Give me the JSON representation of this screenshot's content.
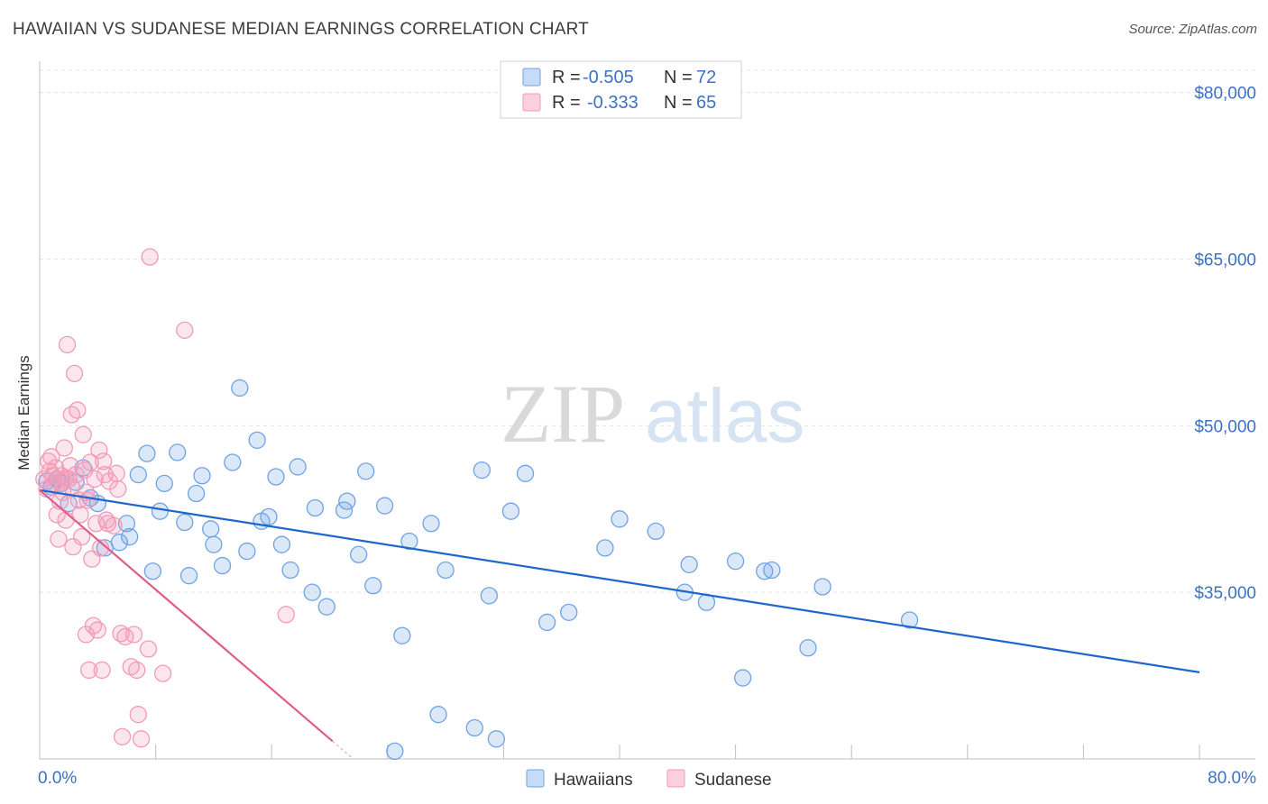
{
  "chart_data": {
    "type": "scatter",
    "title": "HAWAIIAN VS SUDANESE MEDIAN EARNINGS CORRELATION CHART",
    "source": "Source: ZipAtlas.com",
    "ylabel": "Median Earnings",
    "xlabel": "",
    "xlim": [
      0,
      80
    ],
    "ylim": [
      20000,
      82000
    ],
    "x_tick_labels": [
      "0.0%",
      "80.0%"
    ],
    "y_ticks": [
      {
        "value": 35000,
        "label": "$35,000"
      },
      {
        "value": 50000,
        "label": "$50,000"
      },
      {
        "value": 65000,
        "label": "$65,000"
      },
      {
        "value": 80000,
        "label": "$80,000"
      }
    ],
    "grid": true,
    "watermark": "ZIPatlas",
    "colors": {
      "hawaiians": "#6fa3e3",
      "hawaiians_line": "#1f66cc",
      "sudanese": "#f29ab7",
      "sudanese_line": "#e05c8a",
      "axis_text": "#3b72c4"
    },
    "legend": [
      {
        "swatch": "hawaiians",
        "r_label": "R = ",
        "r_value": "-0.505",
        "n_label": "N = ",
        "n_value": "72"
      },
      {
        "swatch": "sudanese",
        "r_label": "R = ",
        "r_value": "-0.333",
        "n_label": "N = ",
        "n_value": "65"
      }
    ],
    "series": [
      {
        "name": "Hawaiians",
        "trend": {
          "x": [
            0,
            80
          ],
          "y": [
            44200,
            27800
          ]
        },
        "points": [
          [
            0.5,
            45000
          ],
          [
            0.8,
            44500
          ],
          [
            1.2,
            45200
          ],
          [
            1.5,
            44800
          ],
          [
            2,
            43000
          ],
          [
            2.5,
            44900
          ],
          [
            3,
            46200
          ],
          [
            3.5,
            43500
          ],
          [
            4,
            43000
          ],
          [
            4.5,
            39000
          ],
          [
            5.5,
            39500
          ],
          [
            6,
            41200
          ],
          [
            6.2,
            40000
          ],
          [
            6.8,
            45600
          ],
          [
            7.4,
            47500
          ],
          [
            7.8,
            36900
          ],
          [
            8.3,
            42300
          ],
          [
            8.6,
            44800
          ],
          [
            9.5,
            47600
          ],
          [
            10,
            41300
          ],
          [
            10.3,
            36500
          ],
          [
            10.8,
            43900
          ],
          [
            11.2,
            45500
          ],
          [
            11.8,
            40700
          ],
          [
            12,
            39300
          ],
          [
            12.6,
            37400
          ],
          [
            13.3,
            46700
          ],
          [
            13.8,
            53400
          ],
          [
            14.3,
            38700
          ],
          [
            15,
            48700
          ],
          [
            15.3,
            41400
          ],
          [
            15.8,
            41800
          ],
          [
            16.3,
            45400
          ],
          [
            16.7,
            39300
          ],
          [
            17.3,
            37000
          ],
          [
            17.8,
            46300
          ],
          [
            18.8,
            35000
          ],
          [
            19,
            42600
          ],
          [
            19.8,
            33700
          ],
          [
            21,
            42400
          ],
          [
            21.2,
            43200
          ],
          [
            22,
            38400
          ],
          [
            22.5,
            45900
          ],
          [
            23,
            35600
          ],
          [
            23.8,
            42800
          ],
          [
            25,
            31100
          ],
          [
            25.5,
            39600
          ],
          [
            27,
            41200
          ],
          [
            27.5,
            24000
          ],
          [
            28,
            37000
          ],
          [
            30,
            22800
          ],
          [
            30.5,
            46000
          ],
          [
            31,
            34700
          ],
          [
            31.5,
            21800
          ],
          [
            32.5,
            42300
          ],
          [
            33.5,
            45700
          ],
          [
            35,
            32300
          ],
          [
            36.5,
            33200
          ],
          [
            39,
            39000
          ],
          [
            40,
            41600
          ],
          [
            42.5,
            40500
          ],
          [
            44.5,
            35000
          ],
          [
            44.8,
            37500
          ],
          [
            46,
            34100
          ],
          [
            48,
            37800
          ],
          [
            48.5,
            27300
          ],
          [
            50,
            36900
          ],
          [
            50.5,
            37000
          ],
          [
            53,
            30000
          ],
          [
            54,
            35500
          ],
          [
            60,
            32500
          ],
          [
            24.5,
            20700
          ]
        ]
      },
      {
        "name": "Sudanese",
        "trend": {
          "x": [
            0,
            20.2
          ],
          "y": [
            44200,
            21600
          ]
        },
        "points": [
          [
            0.3,
            45200
          ],
          [
            0.5,
            44300
          ],
          [
            0.6,
            46800
          ],
          [
            0.8,
            47200
          ],
          [
            0.9,
            45500
          ],
          [
            1,
            44800
          ],
          [
            1.1,
            46200
          ],
          [
            1.2,
            42000
          ],
          [
            1.3,
            39800
          ],
          [
            1.4,
            43200
          ],
          [
            1.5,
            45500
          ],
          [
            1.6,
            44000
          ],
          [
            1.7,
            48000
          ],
          [
            1.8,
            41500
          ],
          [
            1.9,
            57300
          ],
          [
            2,
            45200
          ],
          [
            2.1,
            46400
          ],
          [
            2.2,
            51000
          ],
          [
            2.3,
            39100
          ],
          [
            2.4,
            54700
          ],
          [
            2.5,
            45600
          ],
          [
            2.6,
            51400
          ],
          [
            2.7,
            43300
          ],
          [
            2.8,
            42000
          ],
          [
            2.9,
            40000
          ],
          [
            3,
            49200
          ],
          [
            3.1,
            46000
          ],
          [
            3.2,
            31200
          ],
          [
            3.3,
            43300
          ],
          [
            3.4,
            28000
          ],
          [
            3.5,
            46700
          ],
          [
            3.6,
            38000
          ],
          [
            3.7,
            32000
          ],
          [
            3.8,
            45200
          ],
          [
            3.9,
            41200
          ],
          [
            4,
            31600
          ],
          [
            4.1,
            47800
          ],
          [
            4.2,
            39000
          ],
          [
            4.3,
            28000
          ],
          [
            4.4,
            46800
          ],
          [
            4.5,
            45600
          ],
          [
            4.6,
            41500
          ],
          [
            4.7,
            41200
          ],
          [
            4.8,
            45000
          ],
          [
            5.1,
            41000
          ],
          [
            5.3,
            45700
          ],
          [
            5.6,
            31300
          ],
          [
            5.7,
            22000
          ],
          [
            5.9,
            31000
          ],
          [
            6.3,
            28300
          ],
          [
            6.5,
            31200
          ],
          [
            6.7,
            28000
          ],
          [
            6.8,
            24000
          ],
          [
            7,
            21800
          ],
          [
            7.5,
            29900
          ],
          [
            7.6,
            65200
          ],
          [
            8.5,
            27700
          ],
          [
            10,
            58600
          ],
          [
            17,
            33000
          ],
          [
            1.5,
            45000
          ],
          [
            2.2,
            44500
          ],
          [
            3.2,
            44000
          ],
          [
            0.7,
            45900
          ],
          [
            1.8,
            45300
          ],
          [
            5.4,
            44300
          ]
        ]
      }
    ]
  }
}
